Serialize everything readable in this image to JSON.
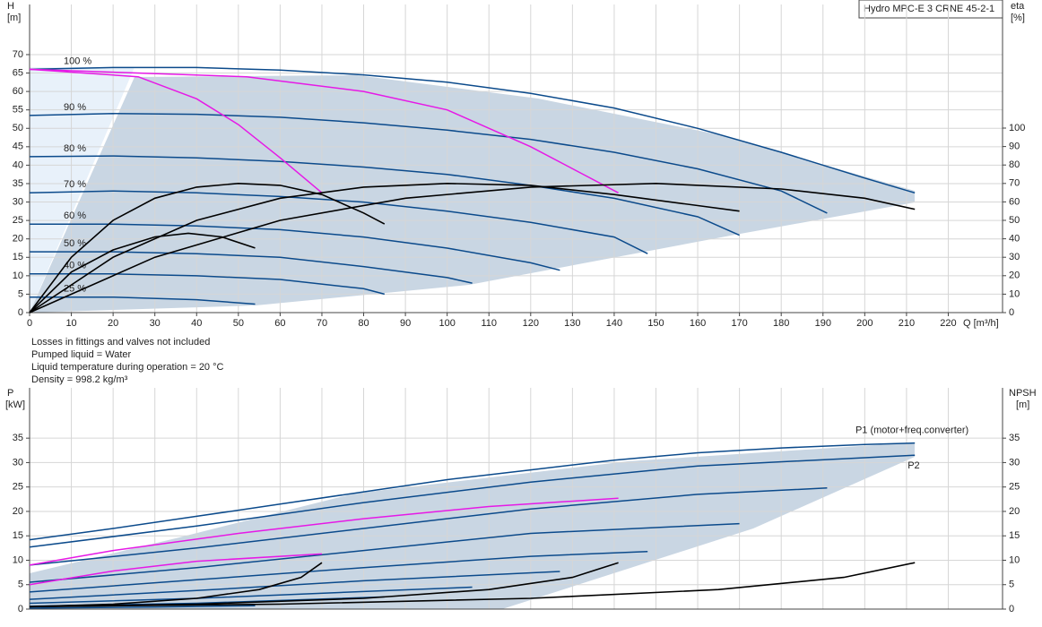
{
  "chart_data": [
    {
      "type": "line",
      "title": "Hydro MPC-E 3 CRNE 45-2-1",
      "y_label": "H",
      "y_unit": "[m]",
      "y2_label": "eta",
      "y2_unit": "[%]",
      "x_label": "Q [m³/h]",
      "notes": [
        "Losses in fittings and valves not included",
        "Pumped liquid = Water",
        "Liquid temperature during operation = 20 °C",
        "Density = 998.2 kg/m³"
      ],
      "grid": true,
      "xlim": [
        0,
        233
      ],
      "ylim": [
        0,
        83.6
      ],
      "y2lim": [
        0,
        167
      ],
      "xticks": [
        0,
        10,
        20,
        30,
        40,
        50,
        60,
        70,
        80,
        90,
        100,
        110,
        120,
        130,
        140,
        150,
        160,
        170,
        180,
        190,
        200,
        210,
        220
      ],
      "yticks": [
        0,
        5,
        10,
        15,
        20,
        25,
        30,
        35,
        40,
        45,
        50,
        55,
        60,
        65,
        70
      ],
      "y2ticks": [
        0,
        10,
        20,
        30,
        40,
        50,
        60,
        70,
        80,
        90,
        100
      ],
      "series": [
        {
          "name": "100 %",
          "color": "#0b4a8b",
          "x": [
            0,
            20,
            40,
            60,
            80,
            100,
            120,
            140,
            160,
            180,
            200,
            212
          ],
          "values": [
            66,
            66.5,
            66.5,
            65.8,
            64.5,
            62.5,
            59.5,
            55.5,
            50,
            43.5,
            36.5,
            32.5
          ]
        },
        {
          "name": "90 %",
          "color": "#0b4a8b",
          "x": [
            0,
            20,
            40,
            60,
            80,
            100,
            120,
            140,
            160,
            180,
            191
          ],
          "values": [
            53.5,
            54,
            53.8,
            53,
            51.5,
            49.5,
            47,
            43.5,
            39,
            33,
            27
          ]
        },
        {
          "name": "80 %",
          "color": "#0b4a8b",
          "x": [
            0,
            20,
            40,
            60,
            80,
            100,
            120,
            140,
            160,
            170
          ],
          "values": [
            42.3,
            42.5,
            42,
            41,
            39.5,
            37.5,
            34.5,
            31,
            26,
            21
          ]
        },
        {
          "name": "70 %",
          "color": "#0b4a8b",
          "x": [
            0,
            20,
            40,
            60,
            80,
            100,
            120,
            140,
            148
          ],
          "values": [
            32.5,
            33,
            32.5,
            31.5,
            30,
            27.5,
            24.5,
            20.5,
            16
          ]
        },
        {
          "name": "60 %",
          "color": "#0b4a8b",
          "x": [
            0,
            20,
            40,
            60,
            80,
            100,
            120,
            127
          ],
          "values": [
            24,
            24,
            23.5,
            22.5,
            20.5,
            17.5,
            13.5,
            11.5
          ]
        },
        {
          "name": "50 %",
          "color": "#0b4a8b",
          "x": [
            0,
            20,
            40,
            60,
            80,
            100,
            106
          ],
          "values": [
            16.5,
            16.5,
            16,
            15,
            12.5,
            9.5,
            8
          ]
        },
        {
          "name": "40 %",
          "color": "#0b4a8b",
          "x": [
            0,
            20,
            40,
            60,
            80,
            85
          ],
          "values": [
            10.5,
            10.5,
            10,
            9,
            6.5,
            5
          ]
        },
        {
          "name": "25 %",
          "color": "#0b4a8b",
          "x": [
            0,
            20,
            40,
            54
          ],
          "values": [
            4.2,
            4.2,
            3.5,
            2.3
          ]
        },
        {
          "color": "#e619e6",
          "x": [
            0,
            26,
            40,
            50,
            60,
            70
          ],
          "values": [
            66,
            64,
            58,
            51,
            42,
            32.5
          ]
        },
        {
          "color": "#e619e6",
          "x": [
            0,
            52,
            80,
            100,
            120,
            141
          ],
          "values": [
            66,
            64,
            60,
            55,
            45,
            32.5
          ]
        },
        {
          "color": "#000000",
          "axis": "y2",
          "x": [
            0,
            10,
            20,
            30,
            40,
            50,
            60,
            70,
            80,
            85
          ],
          "values": [
            0,
            30,
            50,
            62,
            68,
            70,
            69,
            64,
            54,
            48
          ]
        },
        {
          "color": "#000000",
          "axis": "y2",
          "x": [
            0,
            20,
            40,
            60,
            80,
            100,
            120,
            140,
            160,
            170
          ],
          "values": [
            0,
            30,
            50,
            62,
            68,
            70,
            69,
            64,
            58,
            55
          ]
        },
        {
          "color": "#000000",
          "axis": "y2",
          "x": [
            0,
            30,
            60,
            90,
            120,
            150,
            180,
            200,
            212
          ],
          "values": [
            0,
            30,
            50,
            62,
            68,
            70,
            67,
            62,
            56
          ]
        },
        {
          "color": "#000000",
          "axis": "y2",
          "x": [
            0,
            10,
            20,
            30,
            38,
            46,
            54
          ],
          "values": [
            0,
            22,
            34,
            41,
            43,
            41,
            35
          ]
        }
      ]
    },
    {
      "type": "line",
      "y_label": "P",
      "y_unit": "[kW]",
      "y2_label": "NPSH",
      "y2_unit": "[m]",
      "grid": true,
      "xlim": [
        0,
        233
      ],
      "ylim": [
        0,
        45.3
      ],
      "y2lim": [
        0,
        45.3
      ],
      "yticks": [
        0,
        5,
        10,
        15,
        20,
        25,
        30,
        35
      ],
      "y2ticks": [
        0,
        5,
        10,
        15,
        20,
        25,
        30,
        35
      ],
      "series": [
        {
          "name": "P1 (motor+freq.converter)",
          "color": "#0b4a8b",
          "x": [
            0,
            20,
            40,
            60,
            80,
            100,
            120,
            140,
            160,
            180,
            200,
            212
          ],
          "values": [
            14.2,
            16.5,
            19,
            21.5,
            24,
            26.5,
            28.5,
            30.5,
            32,
            33,
            33.7,
            34
          ]
        },
        {
          "name": "P2",
          "color": "#0b4a8b",
          "x": [
            0,
            40,
            80,
            120,
            160,
            200,
            212
          ],
          "values": [
            12.7,
            17,
            21.8,
            26,
            29.3,
            31,
            31.5
          ]
        },
        {
          "color": "#0b4a8b",
          "x": [
            0,
            40,
            80,
            120,
            160,
            191
          ],
          "values": [
            9,
            12.5,
            16.5,
            20.5,
            23.5,
            24.8
          ]
        },
        {
          "color": "#0b4a8b",
          "x": [
            0,
            40,
            80,
            120,
            170
          ],
          "values": [
            5.5,
            8.5,
            12,
            15.5,
            17.5
          ]
        },
        {
          "color": "#0b4a8b",
          "x": [
            0,
            40,
            80,
            120,
            148
          ],
          "values": [
            3.5,
            6,
            8.5,
            10.8,
            11.8
          ]
        },
        {
          "color": "#0b4a8b",
          "x": [
            0,
            40,
            80,
            127
          ],
          "values": [
            2,
            3.8,
            5.8,
            7.7
          ]
        },
        {
          "color": "#0b4a8b",
          "x": [
            0,
            40,
            80,
            106
          ],
          "values": [
            1.2,
            2.2,
            3.6,
            4.5
          ]
        },
        {
          "color": "#0b4a8b",
          "x": [
            0,
            40,
            85
          ],
          "values": [
            0.6,
            1.2,
            2.5
          ]
        },
        {
          "color": "#0b4a8b",
          "x": [
            0,
            30,
            54
          ],
          "values": [
            0.2,
            0.4,
            0.7
          ]
        },
        {
          "color": "#e619e6",
          "x": [
            0,
            20,
            50,
            80,
            110,
            141
          ],
          "values": [
            9,
            12,
            15.5,
            18.5,
            21,
            22.7
          ]
        },
        {
          "color": "#e619e6",
          "x": [
            0,
            20,
            40,
            70
          ],
          "values": [
            5,
            7.8,
            9.8,
            11.3
          ]
        },
        {
          "color": "#000000",
          "axis": "y2",
          "x": [
            0,
            20,
            40,
            55,
            65,
            70
          ],
          "values": [
            0.5,
            1,
            2.2,
            4,
            6.5,
            9.5
          ]
        },
        {
          "color": "#000000",
          "axis": "y2",
          "x": [
            0,
            40,
            80,
            110,
            130,
            141
          ],
          "values": [
            0.5,
            1,
            2.2,
            4,
            6.5,
            9.5
          ]
        },
        {
          "color": "#000000",
          "axis": "y2",
          "x": [
            0,
            60,
            120,
            165,
            195,
            212
          ],
          "values": [
            0.5,
            1,
            2.2,
            4,
            6.5,
            9.5
          ]
        }
      ]
    }
  ]
}
